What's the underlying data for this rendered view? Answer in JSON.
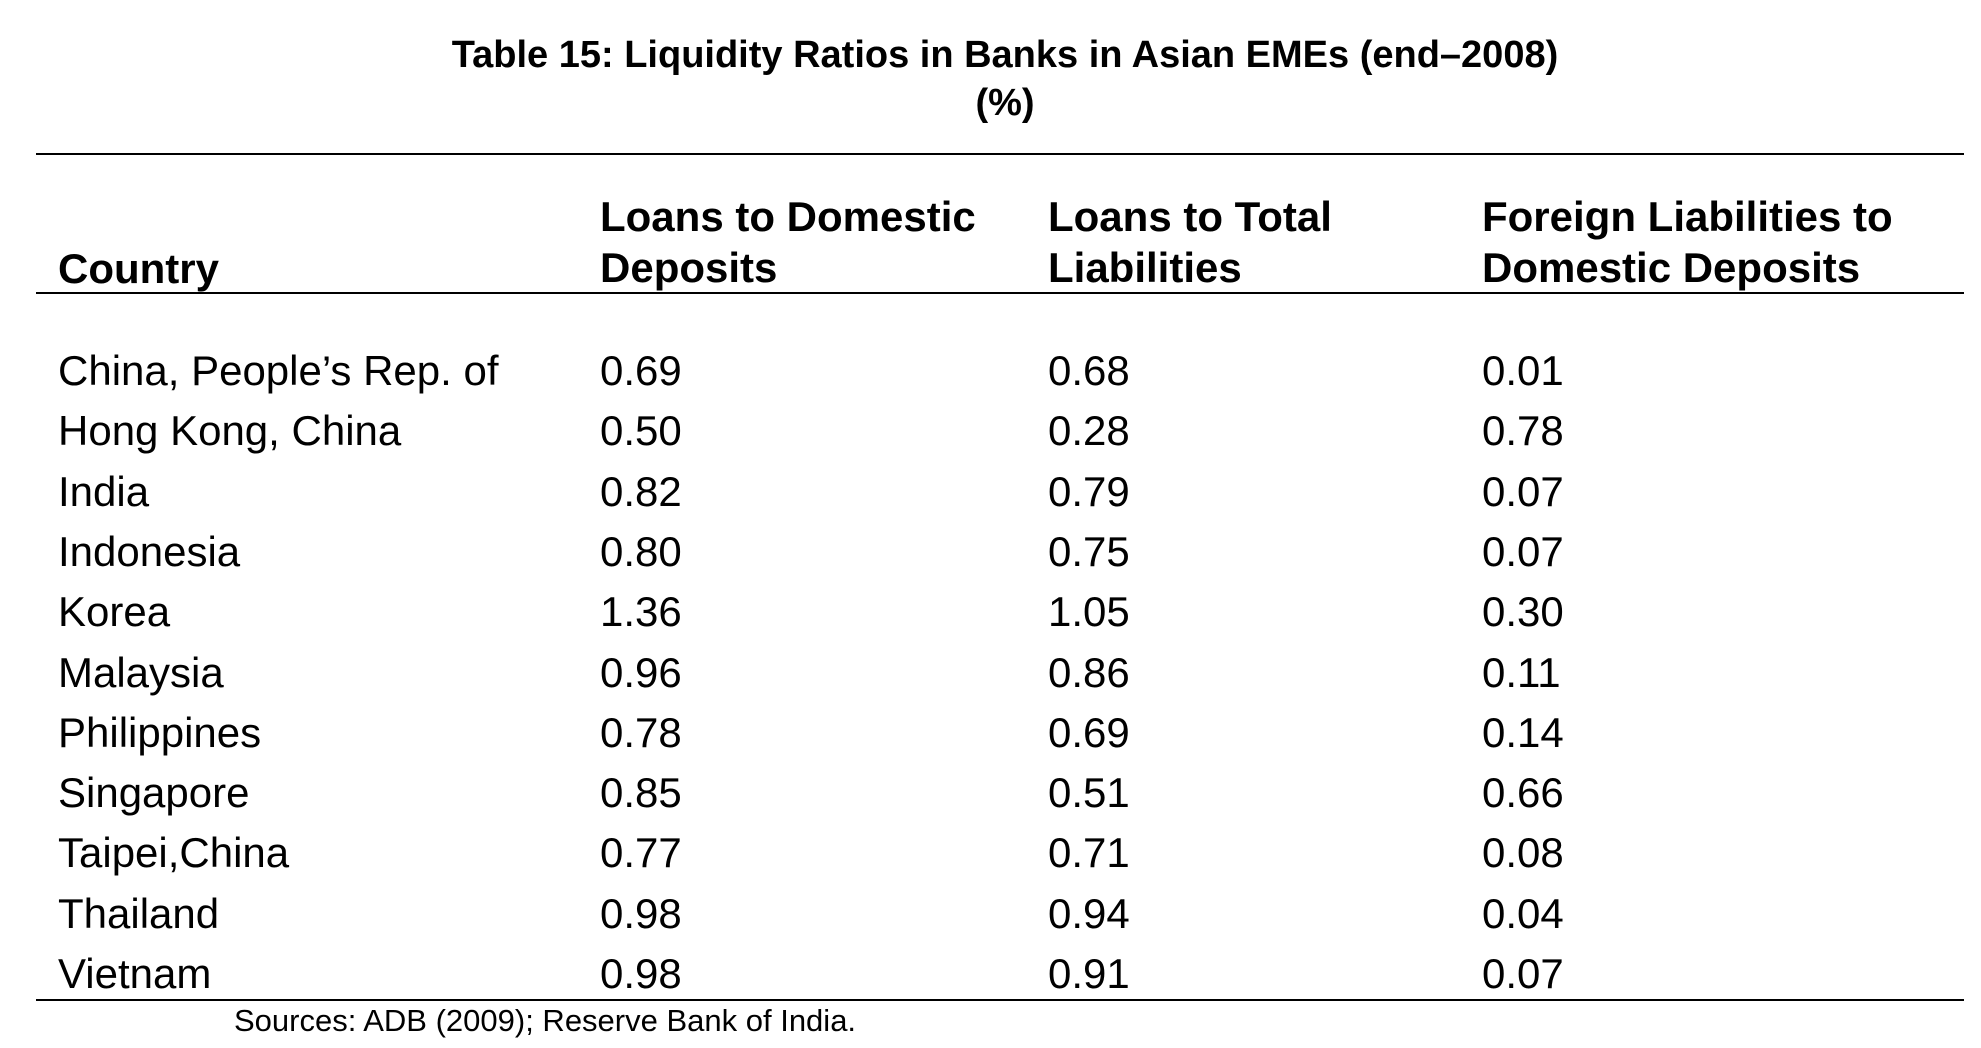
{
  "title": {
    "line1": "Table 15: Liquidity Ratios in Banks in Asian EMEs (end–2008)",
    "line2": "(%)"
  },
  "headers": {
    "country": "Country",
    "loans_domestic": [
      "Loans to Domestic",
      "Deposits"
    ],
    "loans_total": [
      "Loans to Total",
      "Liabilities"
    ],
    "foreign_liab": [
      "Foreign Liabilities to",
      "Domestic Deposits"
    ]
  },
  "rows": [
    {
      "country": "China, People’s Rep. of",
      "ldd": "0.69",
      "ltl": "0.68",
      "fldd": "0.01"
    },
    {
      "country": "Hong Kong, China",
      "ldd": "0.50",
      "ltl": "0.28",
      "fldd": "0.78"
    },
    {
      "country": "India",
      "ldd": "0.82",
      "ltl": "0.79",
      "fldd": "0.07"
    },
    {
      "country": "Indonesia",
      "ldd": "0.80",
      "ltl": "0.75",
      "fldd": "0.07"
    },
    {
      "country": "Korea",
      "ldd": "1.36",
      "ltl": "1.05",
      "fldd": "0.30"
    },
    {
      "country": "Malaysia",
      "ldd": "0.96",
      "ltl": "0.86",
      "fldd": "0.11"
    },
    {
      "country": "Philippines",
      "ldd": "0.78",
      "ltl": "0.69",
      "fldd": "0.14"
    },
    {
      "country": "Singapore",
      "ldd": "0.85",
      "ltl": "0.51",
      "fldd": "0.66"
    },
    {
      "country": "Taipei,China",
      "ldd": "0.77",
      "ltl": "0.71",
      "fldd": "0.08"
    },
    {
      "country": "Thailand",
      "ldd": "0.98",
      "ltl": "0.94",
      "fldd": "0.04"
    },
    {
      "country": "Vietnam",
      "ldd": "0.98",
      "ltl": "0.91",
      "fldd": "0.07"
    }
  ],
  "source": "Sources: ADB (2009); Reserve Bank of India."
}
